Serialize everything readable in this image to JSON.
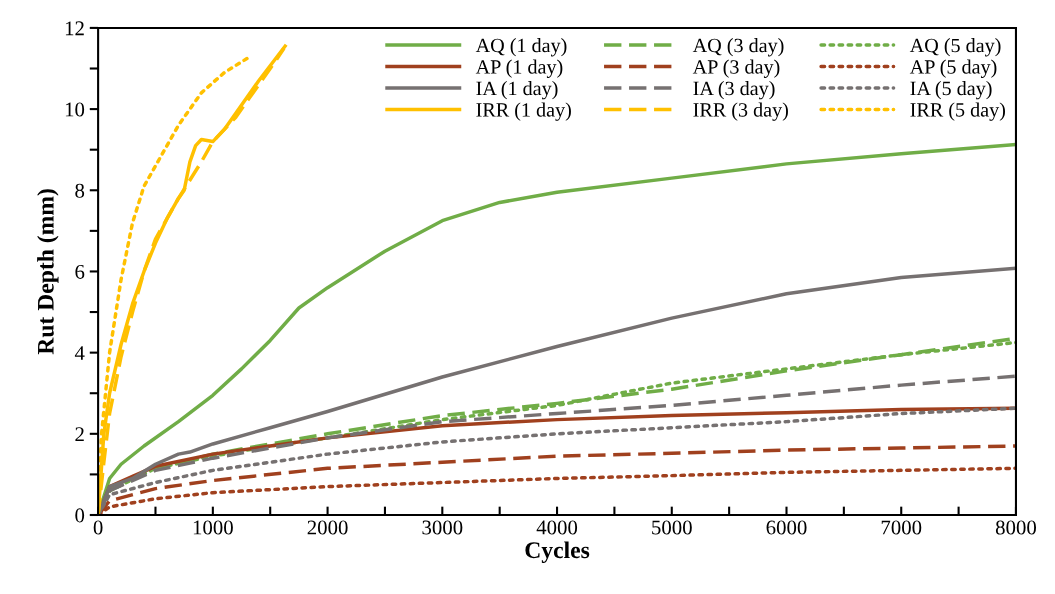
{
  "chart_data": {
    "type": "line",
    "xlabel": "Cycles",
    "ylabel": "Rut Depth (mm)",
    "xlim": [
      0,
      8000
    ],
    "ylim": [
      0,
      12
    ],
    "xticks": [
      0,
      {
        "value": 500,
        "label": null
      },
      1000,
      {
        "value": 1500,
        "label": null
      },
      2000,
      {
        "value": 2500,
        "label": null
      },
      3000,
      {
        "value": 3500,
        "label": null
      },
      4000,
      {
        "value": 4500,
        "label": null
      },
      5000,
      {
        "value": 5500,
        "label": null
      },
      6000,
      {
        "value": 6500,
        "label": null
      },
      7000,
      {
        "value": 7500,
        "label": null
      },
      8000
    ],
    "yticks": [
      0,
      {
        "value": 1,
        "label": null
      },
      2,
      {
        "value": 3,
        "label": null
      },
      4,
      {
        "value": 5,
        "label": null
      },
      6,
      {
        "value": 7,
        "label": null
      },
      8,
      {
        "value": 9,
        "label": null
      },
      10,
      {
        "value": 11,
        "label": null
      },
      12
    ],
    "grid": false,
    "legend": "top right",
    "marker": "none",
    "series": [
      {
        "name": "AQ (1 day)",
        "color": "#70ad47",
        "line_style": "solid",
        "x": [
          0,
          100,
          200,
          400,
          700,
          1000,
          1250,
          1500,
          1750,
          2000,
          2500,
          3000,
          3500,
          4000,
          5000,
          6000,
          7000,
          8000
        ],
        "values": [
          0,
          0.9,
          1.25,
          1.7,
          2.3,
          2.95,
          3.6,
          4.3,
          5.1,
          5.6,
          6.5,
          7.25,
          7.7,
          7.95,
          8.3,
          8.65,
          8.9,
          9.13
        ]
      },
      {
        "name": "AQ (3 day)",
        "color": "#70ad47",
        "line_style": "dashed",
        "x": [
          0,
          100,
          500,
          1000,
          1500,
          2000,
          3000,
          4000,
          5000,
          6000,
          7000,
          8000
        ],
        "values": [
          0,
          0.6,
          1.15,
          1.5,
          1.75,
          2.0,
          2.45,
          2.75,
          3.1,
          3.55,
          3.95,
          4.35
        ]
      },
      {
        "name": "AQ (5 day)",
        "color": "#70ad47",
        "line_style": "dotted",
        "x": [
          0,
          100,
          500,
          1000,
          1500,
          2000,
          3000,
          4000,
          5000,
          6000,
          7000,
          8000
        ],
        "values": [
          0,
          0.6,
          1.15,
          1.45,
          1.7,
          1.9,
          2.35,
          2.7,
          3.25,
          3.6,
          3.95,
          4.25
        ]
      },
      {
        "name": "AP (1 day)",
        "color": "#a0401e",
        "line_style": "solid",
        "x": [
          0,
          100,
          300,
          500,
          1000,
          1500,
          2000,
          3000,
          4000,
          5000,
          6000,
          7000,
          8000
        ],
        "values": [
          0,
          0.7,
          0.95,
          1.2,
          1.5,
          1.7,
          1.9,
          2.2,
          2.35,
          2.45,
          2.52,
          2.6,
          2.63
        ]
      },
      {
        "name": "AP (3 day)",
        "color": "#a0401e",
        "line_style": "dashed",
        "x": [
          0,
          100,
          500,
          1000,
          2000,
          3000,
          4000,
          5000,
          6000,
          7000,
          8000
        ],
        "values": [
          0,
          0.35,
          0.65,
          0.85,
          1.15,
          1.3,
          1.45,
          1.52,
          1.6,
          1.65,
          1.7
        ]
      },
      {
        "name": "AP (5 day)",
        "color": "#a0401e",
        "line_style": "dotted",
        "x": [
          0,
          100,
          500,
          1000,
          2000,
          3000,
          4000,
          5000,
          6000,
          7000,
          8000
        ],
        "values": [
          0,
          0.2,
          0.4,
          0.55,
          0.7,
          0.8,
          0.9,
          0.97,
          1.05,
          1.1,
          1.15
        ]
      },
      {
        "name": "IA (1 day)",
        "color": "#767171",
        "line_style": "solid",
        "x": [
          0,
          100,
          300,
          500,
          700,
          800,
          1000,
          1500,
          2000,
          3000,
          4000,
          5000,
          6000,
          7000,
          8000
        ],
        "values": [
          0,
          0.7,
          0.9,
          1.25,
          1.5,
          1.55,
          1.75,
          2.15,
          2.55,
          3.4,
          4.15,
          4.85,
          5.45,
          5.85,
          6.08
        ]
      },
      {
        "name": "IA (3 day)",
        "color": "#767171",
        "line_style": "dashed",
        "x": [
          0,
          100,
          500,
          1000,
          2000,
          3000,
          4000,
          5000,
          6000,
          7000,
          8000
        ],
        "values": [
          0,
          0.6,
          1.1,
          1.4,
          1.9,
          2.3,
          2.5,
          2.7,
          2.95,
          3.2,
          3.42
        ]
      },
      {
        "name": "IA (5 day)",
        "color": "#767171",
        "line_style": "dotted",
        "x": [
          0,
          100,
          500,
          1000,
          2000,
          3000,
          4000,
          5000,
          6000,
          7000,
          8000
        ],
        "values": [
          0,
          0.5,
          0.8,
          1.1,
          1.5,
          1.8,
          2.0,
          2.15,
          2.3,
          2.5,
          2.63
        ]
      },
      {
        "name": "IRR (1 day)",
        "color": "#ffc000",
        "line_style": "solid",
        "x": [
          0,
          50,
          100,
          200,
          300,
          400,
          500,
          600,
          700,
          750,
          800,
          850,
          900,
          1000,
          1100,
          1200,
          1400,
          1630
        ],
        "values": [
          0,
          2.0,
          3.0,
          4.2,
          5.2,
          6.0,
          6.7,
          7.3,
          7.8,
          8.0,
          8.7,
          9.1,
          9.25,
          9.2,
          9.5,
          9.9,
          10.7,
          11.55
        ]
      },
      {
        "name": "IRR (3 day)",
        "color": "#ffc000",
        "line_style": "dashed",
        "x": [
          0,
          50,
          100,
          200,
          300,
          400,
          500,
          700,
          900,
          1000,
          1200,
          1400,
          1550,
          1620
        ],
        "values": [
          0,
          1.3,
          2.5,
          3.9,
          5.0,
          6.0,
          6.8,
          7.8,
          8.7,
          9.2,
          9.8,
          10.6,
          11.2,
          11.5
        ]
      },
      {
        "name": "IRR (5 day)",
        "color": "#ffc000",
        "line_style": "dotted",
        "x": [
          0,
          30,
          100,
          200,
          300,
          400,
          500,
          700,
          900,
          1100,
          1300
        ],
        "values": [
          0,
          2.0,
          4.0,
          5.8,
          7.2,
          8.1,
          8.6,
          9.6,
          10.4,
          10.9,
          11.25
        ]
      }
    ]
  }
}
